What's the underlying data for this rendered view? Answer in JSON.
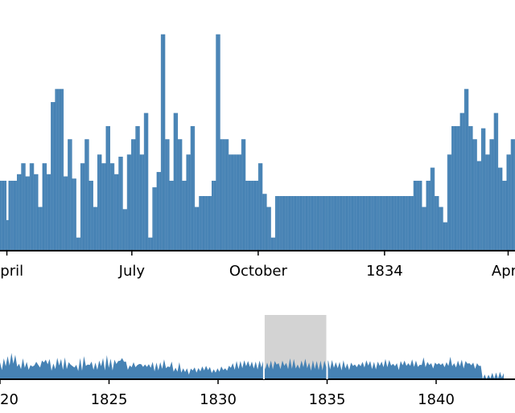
{
  "chart_data": [
    {
      "type": "bar",
      "role": "focus",
      "x_tick_labels": [
        "April",
        "July",
        "October",
        "1834",
        "April"
      ],
      "x_tick_dates": [
        "1833-04-01",
        "1833-07-01",
        "1833-10-01",
        "1834-01-01",
        "1834-04-01"
      ],
      "x_range": [
        "1833-03-27",
        "1834-04-06"
      ],
      "y_range": [
        0,
        1
      ],
      "grid": false,
      "color": "#4682b4",
      "values": [
        0.32,
        0.32,
        0.32,
        0.32,
        0.32,
        0.32,
        0.32,
        0.32,
        0.32,
        0.14,
        0.14,
        0.14,
        0.32,
        0.32,
        0.32,
        0.32,
        0.32,
        0.32,
        0.32,
        0.32,
        0.32,
        0.32,
        0.32,
        0.32,
        0.35,
        0.35,
        0.35,
        0.35,
        0.35,
        0.35,
        0.4,
        0.4,
        0.4,
        0.4,
        0.4,
        0.4,
        0.34,
        0.34,
        0.34,
        0.34,
        0.34,
        0.34,
        0.4,
        0.4,
        0.4,
        0.4,
        0.4,
        0.4,
        0.35,
        0.35,
        0.35,
        0.35,
        0.35,
        0.35,
        0.2,
        0.2,
        0.2,
        0.2,
        0.2,
        0.2,
        0.4,
        0.4,
        0.4,
        0.4,
        0.4,
        0.4,
        0.35,
        0.35,
        0.35,
        0.35,
        0.35,
        0.35,
        0.68,
        0.68,
        0.68,
        0.68,
        0.68,
        0.68,
        0.74,
        0.74,
        0.74,
        0.74,
        0.74,
        0.74,
        0.74,
        0.74,
        0.74,
        0.74,
        0.74,
        0.74,
        0.34,
        0.34,
        0.34,
        0.34,
        0.34,
        0.34,
        0.51,
        0.51,
        0.51,
        0.51,
        0.51,
        0.51,
        0.33,
        0.33,
        0.33,
        0.33,
        0.33,
        0.33,
        0.06,
        0.06,
        0.06,
        0.06,
        0.06,
        0.06,
        0.4,
        0.4,
        0.4,
        0.4,
        0.4,
        0.4,
        0.51,
        0.51,
        0.51,
        0.51,
        0.51,
        0.51,
        0.32,
        0.32,
        0.32,
        0.32,
        0.32,
        0.32,
        0.2,
        0.2,
        0.2,
        0.2,
        0.2,
        0.2,
        0.44,
        0.44,
        0.44,
        0.44,
        0.44,
        0.44,
        0.4,
        0.4,
        0.4,
        0.4,
        0.4,
        0.4,
        0.57,
        0.57,
        0.57,
        0.57,
        0.57,
        0.57,
        0.4,
        0.4,
        0.4,
        0.4,
        0.4,
        0.4,
        0.35,
        0.35,
        0.35,
        0.35,
        0.35,
        0.35,
        0.43,
        0.43,
        0.43,
        0.43,
        0.43,
        0.43,
        0.19,
        0.19,
        0.19,
        0.19,
        0.19,
        0.19,
        0.44,
        0.44,
        0.44,
        0.44,
        0.44,
        0.44,
        0.51,
        0.51,
        0.51,
        0.51,
        0.51,
        0.51,
        0.57,
        0.57,
        0.57,
        0.57,
        0.57,
        0.57,
        0.44,
        0.44,
        0.44,
        0.44,
        0.44,
        0.44,
        0.63,
        0.63,
        0.63,
        0.63,
        0.63,
        0.63,
        0.06,
        0.06,
        0.06,
        0.06,
        0.06,
        0.06,
        0.29,
        0.29,
        0.29,
        0.29,
        0.29,
        0.29,
        0.36,
        0.36,
        0.36,
        0.36,
        0.36,
        0.36,
        0.99,
        0.99,
        0.99,
        0.99,
        0.99,
        0.99,
        0.51,
        0.51,
        0.51,
        0.51,
        0.51,
        0.51,
        0.32,
        0.32,
        0.32,
        0.32,
        0.32,
        0.32,
        0.63,
        0.63,
        0.63,
        0.63,
        0.63,
        0.63,
        0.51,
        0.51,
        0.51,
        0.51,
        0.51,
        0.51,
        0.32,
        0.32,
        0.32,
        0.32,
        0.32,
        0.32,
        0.44,
        0.44,
        0.44,
        0.44,
        0.44,
        0.44,
        0.57,
        0.57,
        0.57,
        0.57,
        0.57,
        0.57,
        0.2,
        0.2,
        0.2,
        0.2,
        0.2,
        0.2,
        0.25,
        0.25,
        0.25,
        0.25,
        0.25,
        0.25,
        0.25,
        0.25,
        0.25,
        0.25,
        0.25,
        0.25,
        0.25,
        0.25,
        0.25,
        0.25,
        0.25,
        0.25,
        0.32,
        0.32,
        0.32,
        0.32,
        0.32,
        0.32,
        0.99,
        0.99,
        0.99,
        0.99,
        0.99,
        0.99,
        0.51,
        0.51,
        0.51,
        0.51,
        0.51,
        0.51,
        0.51,
        0.51,
        0.51,
        0.51,
        0.51,
        0.51,
        0.44,
        0.44,
        0.44,
        0.44,
        0.44,
        0.44,
        0.44,
        0.44,
        0.44,
        0.44,
        0.44,
        0.44,
        0.44,
        0.44,
        0.44,
        0.44,
        0.44,
        0.44,
        0.51,
        0.51,
        0.51,
        0.51,
        0.51,
        0.51,
        0.32,
        0.32,
        0.32,
        0.32,
        0.32,
        0.32,
        0.32,
        0.32,
        0.32,
        0.32,
        0.32,
        0.32,
        0.32,
        0.32,
        0.32,
        0.32,
        0.32,
        0.32,
        0.4,
        0.4,
        0.4,
        0.4,
        0.4,
        0.4,
        0.26,
        0.26,
        0.26,
        0.26,
        0.26,
        0.26,
        0.2,
        0.2,
        0.2,
        0.2,
        0.2,
        0.2,
        0.06,
        0.06,
        0.06,
        0.06,
        0.06,
        0.06,
        0.25,
        0.25,
        0.25,
        0.25,
        0.25,
        0.25,
        0.25,
        0.25,
        0.25,
        0.25,
        0.25,
        0.25,
        0.25,
        0.25,
        0.25,
        0.25,
        0.25,
        0.25,
        0.25,
        0.25,
        0.25,
        0.25,
        0.25,
        0.25,
        0.25,
        0.25,
        0.25,
        0.25,
        0.25,
        0.25,
        0.25,
        0.25,
        0.25,
        0.25,
        0.25,
        0.25,
        0.25,
        0.25,
        0.25,
        0.25,
        0.25,
        0.25,
        0.25,
        0.25,
        0.25,
        0.25,
        0.25,
        0.25,
        0.25,
        0.25,
        0.25,
        0.25,
        0.25,
        0.25,
        0.25,
        0.25,
        0.25,
        0.25,
        0.25,
        0.25,
        0.25,
        0.25,
        0.25,
        0.25,
        0.25,
        0.25,
        0.25,
        0.25,
        0.25,
        0.25,
        0.25,
        0.25,
        0.25,
        0.25,
        0.25,
        0.25,
        0.25,
        0.25,
        0.25,
        0.25,
        0.25,
        0.25,
        0.25,
        0.25,
        0.25,
        0.25,
        0.25,
        0.25,
        0.25,
        0.25,
        0.25,
        0.25,
        0.25,
        0.25,
        0.25,
        0.25,
        0.25,
        0.25,
        0.25,
        0.25,
        0.25,
        0.25,
        0.25,
        0.25,
        0.25,
        0.25,
        0.25,
        0.25,
        0.25,
        0.25,
        0.25,
        0.25,
        0.25,
        0.25,
        0.25,
        0.25,
        0.25,
        0.25,
        0.25,
        0.25,
        0.25,
        0.25,
        0.25,
        0.25,
        0.25,
        0.25,
        0.25,
        0.25,
        0.25,
        0.25,
        0.25,
        0.25,
        0.25,
        0.25,
        0.25,
        0.25,
        0.25,
        0.25,
        0.25,
        0.25,
        0.25,
        0.25,
        0.25,
        0.25,
        0.25,
        0.25,
        0.25,
        0.25,
        0.25,
        0.25,
        0.25,
        0.25,
        0.25,
        0.25,
        0.25,
        0.25,
        0.25,
        0.25,
        0.25,
        0.25,
        0.25,
        0.25,
        0.25,
        0.25,
        0.25,
        0.25,
        0.25,
        0.25,
        0.25,
        0.25,
        0.25,
        0.25,
        0.25,
        0.25,
        0.25,
        0.25,
        0.25,
        0.25,
        0.25,
        0.25,
        0.25,
        0.25,
        0.25,
        0.25,
        0.25,
        0.25,
        0.25,
        0.25,
        0.25,
        0.25,
        0.25,
        0.25,
        0.25,
        0.25,
        0.25,
        0.25,
        0.32,
        0.32,
        0.32,
        0.32,
        0.32,
        0.32,
        0.32,
        0.32,
        0.32,
        0.32,
        0.32,
        0.32,
        0.2,
        0.2,
        0.2,
        0.2,
        0.2,
        0.2,
        0.32,
        0.32,
        0.32,
        0.32,
        0.32,
        0.32,
        0.38,
        0.38,
        0.38,
        0.38,
        0.38,
        0.38,
        0.25,
        0.25,
        0.25,
        0.25,
        0.25,
        0.25,
        0.2,
        0.2,
        0.2,
        0.2,
        0.2,
        0.2,
        0.13,
        0.13,
        0.13,
        0.13,
        0.13,
        0.13,
        0.44,
        0.44,
        0.44,
        0.44,
        0.44,
        0.44,
        0.57,
        0.57,
        0.57,
        0.57,
        0.57,
        0.57,
        0.57,
        0.57,
        0.57,
        0.57,
        0.57,
        0.57,
        0.63,
        0.63,
        0.63,
        0.63,
        0.63,
        0.63,
        0.74,
        0.74,
        0.74,
        0.74,
        0.74,
        0.74,
        0.57,
        0.57,
        0.57,
        0.57,
        0.57,
        0.57,
        0.51,
        0.51,
        0.51,
        0.51,
        0.51,
        0.51,
        0.41,
        0.41,
        0.41,
        0.41,
        0.41,
        0.41,
        0.56,
        0.56,
        0.56,
        0.56,
        0.56,
        0.56,
        0.44,
        0.44,
        0.44,
        0.44,
        0.44,
        0.44,
        0.51,
        0.51,
        0.51,
        0.51,
        0.51,
        0.51,
        0.63,
        0.63,
        0.63,
        0.63,
        0.63,
        0.63,
        0.38,
        0.38,
        0.38,
        0.38,
        0.38,
        0.38,
        0.32,
        0.32,
        0.32,
        0.32,
        0.32,
        0.32,
        0.44,
        0.44,
        0.44,
        0.44,
        0.44,
        0.44,
        0.51,
        0.51,
        0.51,
        0.51,
        0.51,
        0.51
      ]
    },
    {
      "type": "area",
      "role": "context",
      "x_tick_labels": [
        "1820",
        "1825",
        "1830",
        "1835",
        "1840"
      ],
      "x_range": [
        1820,
        1843.1
      ],
      "y_range": [
        0,
        1
      ],
      "grid": false,
      "color": "#4682b4",
      "selection": {
        "start": 1832.1,
        "end": 1835.0,
        "color": "#d3d3d3"
      },
      "values": [
        0.43,
        0.36,
        0.55,
        0.48,
        0.62,
        0.5,
        0.72,
        0.56,
        0.66,
        0.47,
        0.38,
        0.39,
        0.55,
        0.43,
        0.44,
        0.37,
        0.34,
        0.47,
        0.33,
        0.62,
        0.35,
        0.44,
        0.48,
        0.6,
        0.51,
        0.54,
        0.53,
        0.34,
        0.39,
        0.39,
        0.57,
        0.5,
        0.53,
        0.37,
        0.58,
        0.39,
        0.43,
        0.53,
        0.31,
        0.44,
        0.35,
        0.33,
        0.56,
        0.34,
        0.62,
        0.49,
        0.36,
        0.52,
        0.45,
        0.37,
        0.42,
        0.37,
        0.48,
        0.48,
        0.56,
        0.35,
        0.65,
        0.43,
        0.54,
        0.35,
        0.51,
        0.55,
        0.47,
        0.65,
        0.56,
        0.62,
        0.45,
        0.37,
        0.33,
        0.45,
        0.43,
        0.45,
        0.34,
        0.55,
        0.37,
        0.46,
        0.36,
        0.46,
        0.37,
        0.43,
        0.44,
        0.32,
        0.42,
        0.35,
        0.43,
        0.4,
        0.52,
        0.42,
        0.3,
        0.45,
        0.45,
        0.31,
        0.26,
        0.31,
        0.43,
        0.28,
        0.24,
        0.3,
        0.24,
        0.22,
        0.23,
        0.35,
        0.27,
        0.28,
        0.25,
        0.32,
        0.3,
        0.35,
        0.32,
        0.36,
        0.28,
        0.27,
        0.21,
        0.28,
        0.24,
        0.31,
        0.3,
        0.36,
        0.24,
        0.34,
        0.32,
        0.43,
        0.4,
        0.37,
        0.47,
        0.39,
        0.47,
        0.42,
        0.49,
        0.48,
        0.47,
        0.46,
        0.45,
        0.41,
        0.45,
        0.38,
        0.48,
        0.44,
        0.49,
        0.38,
        0.42,
        0.41,
        0.48,
        0.38,
        0.47,
        0.53,
        0.4,
        0.39,
        0.48,
        0.49,
        0.41,
        0.39,
        0.55,
        0.4,
        0.53,
        0.41,
        0.36,
        0.4,
        0.48,
        0.45,
        0.54,
        0.42,
        0.42,
        0.34,
        0.49,
        0.39,
        0.47,
        0.36,
        0.48,
        0.35,
        0.48,
        0.45,
        0.49,
        0.38,
        0.5,
        0.43,
        0.43,
        0.42,
        0.44,
        0.35,
        0.49,
        0.41,
        0.39,
        0.36,
        0.42,
        0.49,
        0.36,
        0.45,
        0.38,
        0.48,
        0.44,
        0.44,
        0.49,
        0.5,
        0.47,
        0.39,
        0.44,
        0.38,
        0.45,
        0.49,
        0.45,
        0.45,
        0.53,
        0.45,
        0.5,
        0.5,
        0.38,
        0.48,
        0.4,
        0.36,
        0.47,
        0.51,
        0.48,
        0.49,
        0.4,
        0.49,
        0.52,
        0.46,
        0.48,
        0.46,
        0.35,
        0.52,
        0.58,
        0.45,
        0.44,
        0.52,
        0.4,
        0.41,
        0.42,
        0.53,
        0.4,
        0.52,
        0.4,
        0.45,
        0.43,
        0.49,
        0.6,
        0.48,
        0.4,
        0.44,
        0.48,
        0.48,
        0.51,
        0.41,
        0.47,
        0.56,
        0.4,
        0.51,
        0.42,
        0.4,
        0.4,
        0.49,
        0.32,
        0.05,
        0.05,
        0.06,
        0.04,
        0.1,
        0.1,
        0.09,
        0.11,
        0.09,
        0.13,
        0.13,
        0.09
      ]
    }
  ]
}
